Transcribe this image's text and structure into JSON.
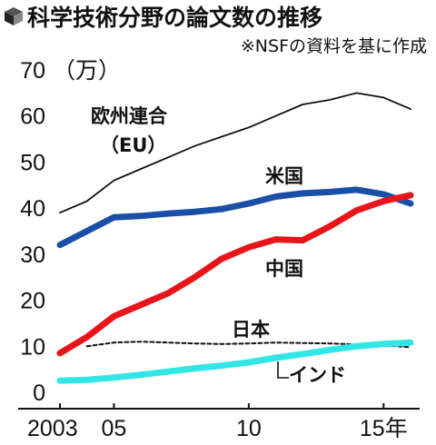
{
  "header": {
    "title": "科学技術分野の論文数の推移",
    "subtitle": "※NSFの資料を基に作成",
    "icon": "cube-icon"
  },
  "chart_data": {
    "type": "line",
    "ylabel": "（万）",
    "ylim": [
      0,
      70
    ],
    "xlim": [
      2003,
      2016
    ],
    "y_ticks": [
      0,
      10,
      20,
      30,
      40,
      50,
      60,
      70
    ],
    "x_ticks": [
      {
        "value": 2003,
        "label": "2003"
      },
      {
        "value": 2005,
        "label": "05"
      },
      {
        "value": 2010,
        "label": "10"
      },
      {
        "value": 2015,
        "label": "15年"
      }
    ],
    "grid": false,
    "series": [
      {
        "name": "欧州連合",
        "name_line2": "（EU）",
        "color": "#111111",
        "style": "solid-thin",
        "x": [
          2003,
          2004,
          2005,
          2006,
          2007,
          2008,
          2009,
          2010,
          2011,
          2012,
          2013,
          2014,
          2015,
          2016
        ],
        "values": [
          39.0,
          41.5,
          46.0,
          48.5,
          51.0,
          53.5,
          55.5,
          57.5,
          60.0,
          62.5,
          63.5,
          65.0,
          64.0,
          61.5
        ]
      },
      {
        "name": "米国",
        "color": "#1a4fa8",
        "style": "solid-thick",
        "x": [
          2003,
          2004,
          2005,
          2006,
          2007,
          2008,
          2009,
          2010,
          2011,
          2012,
          2013,
          2014,
          2015,
          2016
        ],
        "values": [
          32.0,
          35.0,
          38.0,
          38.3,
          38.8,
          39.2,
          39.8,
          41.0,
          42.5,
          43.2,
          43.5,
          44.0,
          43.0,
          41.0
        ]
      },
      {
        "name": "中国",
        "color": "#e8141a",
        "style": "solid-thick",
        "x": [
          2003,
          2004,
          2005,
          2006,
          2007,
          2008,
          2009,
          2010,
          2011,
          2012,
          2013,
          2014,
          2015,
          2016
        ],
        "values": [
          8.5,
          12.0,
          16.5,
          19.0,
          21.5,
          25.0,
          29.0,
          31.5,
          33.2,
          33.0,
          36.0,
          39.5,
          41.5,
          42.8
        ]
      },
      {
        "name": "日本",
        "color": "#111111",
        "style": "dashed",
        "x": [
          2004,
          2005,
          2006,
          2007,
          2008,
          2009,
          2010,
          2011,
          2012,
          2013,
          2014,
          2015,
          2016
        ],
        "values": [
          10.0,
          10.8,
          11.0,
          10.8,
          10.6,
          10.5,
          10.6,
          10.8,
          10.7,
          10.6,
          10.4,
          10.2,
          9.8
        ]
      },
      {
        "name": "インド",
        "color": "#33e6e6",
        "style": "solid-thick",
        "x": [
          2003,
          2004,
          2005,
          2006,
          2007,
          2008,
          2009,
          2010,
          2011,
          2012,
          2013,
          2014,
          2015,
          2016
        ],
        "values": [
          2.5,
          2.7,
          3.2,
          3.8,
          4.5,
          5.2,
          5.8,
          6.5,
          7.5,
          8.3,
          9.2,
          10.0,
          10.5,
          10.8
        ]
      }
    ]
  }
}
